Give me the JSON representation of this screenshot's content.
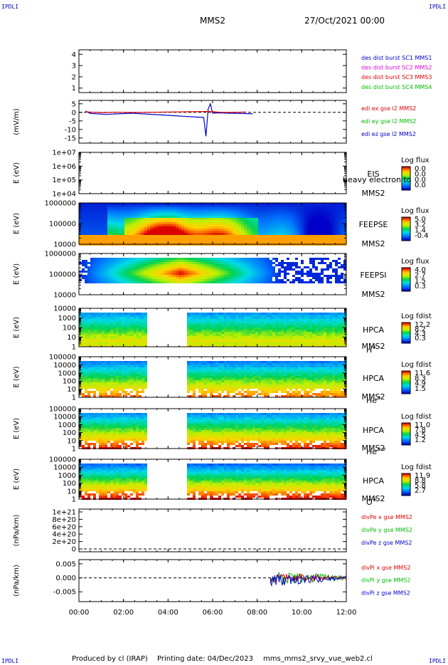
{
  "corner_label": "IPDLI",
  "header": {
    "title": "MMS2",
    "datetime": "27/Oct/2021 00:00"
  },
  "footer": {
    "produced_by": "Produced by cl (IRAP)",
    "printing_date": "Printing date: 04/Dec/2023",
    "filename": "mms_mms2_srvy_vue_web2.cl"
  },
  "colors": {
    "mms1": "#0000cc",
    "mms2": "#e000e0",
    "mms3": "#dd0000",
    "mms4": "#00bb00",
    "x": "#dd0000",
    "y": "#00bb00",
    "z": "#0000cc"
  },
  "chart_data": [
    {
      "type": "line",
      "panel": "dist",
      "ylabel": "",
      "yticks": [
        "1",
        "2",
        "3",
        "4"
      ],
      "ylim": [
        0.6,
        4.4
      ],
      "legend": [
        {
          "label": "des dist burst SC1 MMS1",
          "color": "mms1"
        },
        {
          "label": "des dist burst SC2 MMS2",
          "color": "mms2"
        },
        {
          "label": "des dist burst SC3 MMS3",
          "color": "mms3"
        },
        {
          "label": "des dist burst SC4 MMS4",
          "color": "mms4"
        }
      ],
      "series": []
    },
    {
      "type": "line",
      "panel": "edi",
      "ylabel": "(mV/m)",
      "yticks": [
        "5",
        "0",
        "-5",
        "-10",
        "-15"
      ],
      "ylim": [
        -18,
        7
      ],
      "legend": [
        {
          "label": "edi ex gse l2 MMS2",
          "color": "x"
        },
        {
          "label": "edi ey gse l2 MMS2",
          "color": "y"
        },
        {
          "label": "edi ez gse l2 MMS2",
          "color": "z"
        }
      ],
      "series": [
        {
          "color": "z",
          "x": [
            0.3,
            0.5,
            1.2,
            1.8,
            2.4,
            5.6,
            5.7,
            5.8,
            5.9,
            6.0,
            6.2,
            6.8,
            7.8
          ],
          "y": [
            0.8,
            -0.6,
            -1.2,
            -0.8,
            -0.5,
            -3,
            -14,
            2,
            5,
            -0.5,
            -0.3,
            -0.5,
            -0.8
          ]
        },
        {
          "color": "x",
          "x": [
            0.3,
            0.6,
            1.1,
            1.6,
            2.3,
            5.7,
            6.0,
            6.5,
            7.5
          ],
          "y": [
            0.3,
            0.1,
            -0.2,
            0.1,
            -0.1,
            0.5,
            0.4,
            -0.1,
            0.2
          ]
        }
      ]
    },
    {
      "type": "heatmap",
      "panel": "eis",
      "ylabel": "E (eV)",
      "yticks": [
        "1e+04",
        "1e+05",
        "1e+06",
        "1e+07"
      ],
      "instrument_label": "EIS",
      "sc_label": "MMS2",
      "overlay_text": "heavy electron to",
      "colorbar": {
        "title": "Log flux",
        "ticks": [
          "0.0",
          "0.0",
          "0.0",
          "0.0"
        ]
      },
      "empty": true
    },
    {
      "type": "heatmap",
      "panel": "feepse",
      "ylabel": "E (eV)",
      "yticks": [
        "10000",
        "100000",
        "1000000"
      ],
      "instrument_label": "FEEPSE",
      "sc_label": "MMS2",
      "colorbar": {
        "title": "Log flux",
        "ticks": [
          "5.0",
          "3.2",
          "1.4",
          "-0.4"
        ]
      }
    },
    {
      "type": "heatmap",
      "panel": "feepsi",
      "ylabel": "E (eV)",
      "yticks": [
        "10000",
        "100000",
        "1000000"
      ],
      "instrument_label": "FEEPSI",
      "sc_label": "MMS2",
      "colorbar": {
        "title": "Log flux",
        "ticks": [
          "4.0",
          "2.7",
          "1.5",
          "0.3"
        ]
      }
    },
    {
      "type": "heatmap",
      "panel": "hpca_h",
      "ylabel": "E (eV)",
      "yticks": [
        "1",
        "10",
        "100",
        "1000",
        "10000"
      ],
      "instrument_label": "HPCA",
      "sc_label": "MMS2",
      "ion_base": "H",
      "ion_sup": "+",
      "data_gap_hours": [
        3.0,
        4.8
      ],
      "colorbar": {
        "title": "Log fdist",
        "ticks": [
          "12.2",
          "8.2",
          "4.3",
          "0.3"
        ]
      }
    },
    {
      "type": "heatmap",
      "panel": "hpca_he",
      "ylabel": "E (eV)",
      "yticks": [
        "1",
        "10",
        "100",
        "1000",
        "10000",
        "100000"
      ],
      "instrument_label": "HPCA",
      "sc_label": "MMS2",
      "ion_base": "He",
      "ion_sup": "+",
      "data_gap_hours": [
        3.0,
        4.8
      ],
      "colorbar": {
        "title": "Log fdist",
        "ticks": [
          "11.6",
          "8.3",
          "4.9",
          "1.5"
        ]
      }
    },
    {
      "type": "heatmap",
      "panel": "hpca_hepp",
      "ylabel": "E (eV)",
      "yticks": [
        "1",
        "10",
        "100",
        "1000",
        "10000",
        "100000"
      ],
      "instrument_label": "HPCA",
      "sc_label": "MMS2",
      "ion_base": "He",
      "ion_sup": "++",
      "data_gap_hours": [
        3.0,
        4.8
      ],
      "colorbar": {
        "title": "Log fdist",
        "ticks": [
          "11.0",
          "7.8",
          "4.5",
          "1.2"
        ]
      }
    },
    {
      "type": "heatmap",
      "panel": "hpca_o",
      "ylabel": "E (eV)",
      "yticks": [
        "1",
        "10",
        "100",
        "1000",
        "10000",
        "100000"
      ],
      "instrument_label": "HPCA",
      "sc_label": "MMS2",
      "ion_base": "O",
      "ion_sup": "+",
      "data_gap_hours": [
        3.0,
        4.8
      ],
      "colorbar": {
        "title": "Log fdist",
        "ticks": [
          "11.9",
          "8.8",
          "5.8",
          "2.7"
        ]
      }
    },
    {
      "type": "line",
      "panel": "divpe",
      "ylabel": "(nPa/km)",
      "yticks": [
        "0",
        "2e+20",
        "4e+20",
        "6e+20",
        "8e+20",
        "1e+21"
      ],
      "legend": [
        {
          "label": "divPe x gse MMS2",
          "color": "x"
        },
        {
          "label": "divPe y gse MMS2",
          "color": "y"
        },
        {
          "label": "divPe z gse MMS2",
          "color": "z"
        }
      ],
      "series": []
    },
    {
      "type": "line",
      "panel": "divpi",
      "ylabel": "(nPa/km)",
      "yticks": [
        "0.005",
        "0.000",
        "-0.005"
      ],
      "ylim": [
        -0.0085,
        0.0065
      ],
      "legend": [
        {
          "label": "divPi x gse MMS2",
          "color": "x"
        },
        {
          "label": "divPi y gse MMS2",
          "color": "y"
        },
        {
          "label": "divPi z gse MMS2",
          "color": "z"
        }
      ],
      "data_start_hour": 8.6
    }
  ],
  "xaxis": {
    "ticks": [
      "00:00",
      "02:00",
      "04:00",
      "06:00",
      "08:00",
      "10:00",
      "12:00"
    ],
    "range_hours": [
      0,
      12
    ]
  }
}
